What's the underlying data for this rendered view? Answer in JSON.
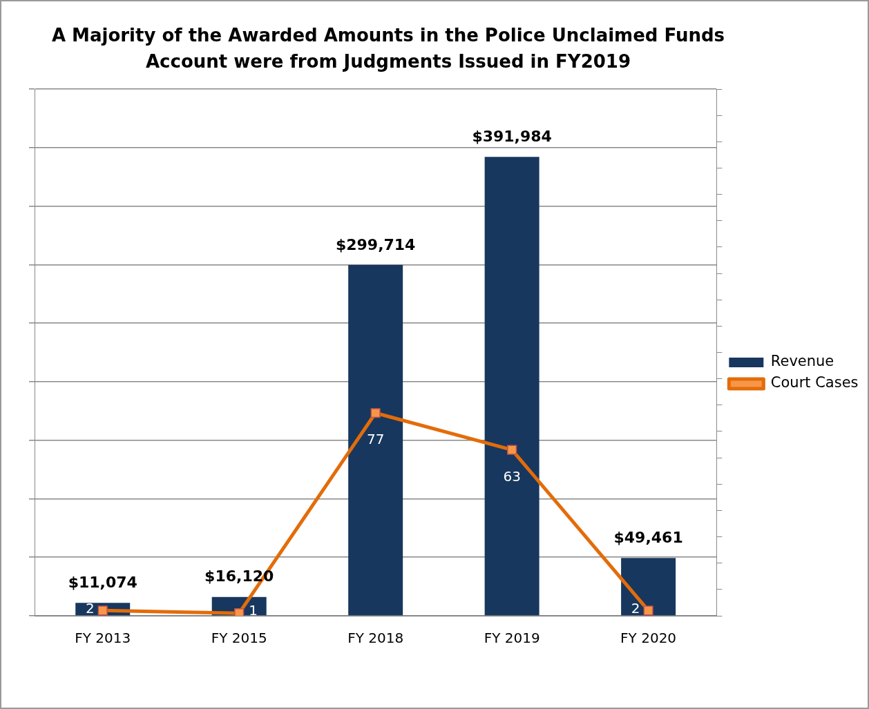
{
  "chart_data": {
    "type": "bar",
    "title": "A Majority of the Awarded Amounts in the Police Unclaimed Funds Account were from Judgments Issued in FY2019",
    "categories": [
      "FY 2013",
      "FY 2015",
      "FY 2018",
      "FY 2019",
      "FY 2020"
    ],
    "series": [
      {
        "name": "Revenue",
        "color": "#17375e",
        "values": [
          11074,
          16120,
          299714,
          391984,
          49461
        ],
        "value_labels": [
          "$11,074",
          "$16,120",
          "$299,714",
          "$391,984",
          "$49,461"
        ]
      },
      {
        "name": "Court Cases",
        "type": "line",
        "axis": "y2",
        "color": "#e36c0a",
        "marker": "square",
        "values": [
          2,
          1,
          77,
          63,
          2
        ],
        "value_labels": [
          "2",
          "1",
          "77",
          "63",
          "2"
        ]
      }
    ],
    "ylim": [
      0,
      450000
    ],
    "yticks": [
      {
        "value": 0,
        "label": null
      },
      {
        "value": 50000,
        "label": null
      },
      {
        "value": 100000,
        "label": null
      },
      {
        "value": 150000,
        "label": null
      },
      {
        "value": 200000,
        "label": null
      },
      {
        "value": 250000,
        "label": null
      },
      {
        "value": 300000,
        "label": null
      },
      {
        "value": 350000,
        "label": null
      },
      {
        "value": 400000,
        "label": null
      },
      {
        "value": 450000,
        "label": null
      }
    ],
    "y2lim": [
      0,
      200
    ],
    "y2ticks": [
      {
        "value": 0,
        "label": null
      },
      {
        "value": 10,
        "label": null
      },
      {
        "value": 20,
        "label": null
      },
      {
        "value": 30,
        "label": null
      },
      {
        "value": 40,
        "label": null
      },
      {
        "value": 50,
        "label": null
      },
      {
        "value": 60,
        "label": null
      },
      {
        "value": 70,
        "label": null
      },
      {
        "value": 80,
        "label": null
      },
      {
        "value": 90,
        "label": null
      },
      {
        "value": 100,
        "label": null
      },
      {
        "value": 110,
        "label": null
      },
      {
        "value": 120,
        "label": null
      },
      {
        "value": 130,
        "label": null
      },
      {
        "value": 140,
        "label": null
      },
      {
        "value": 150,
        "label": null
      },
      {
        "value": 160,
        "label": null
      },
      {
        "value": 170,
        "label": null
      },
      {
        "value": 180,
        "label": null
      },
      {
        "value": 190,
        "label": null
      },
      {
        "value": 200,
        "label": null
      }
    ],
    "tick_labels": "x",
    "grid": "y",
    "legend": "right",
    "line_style": "solid"
  }
}
